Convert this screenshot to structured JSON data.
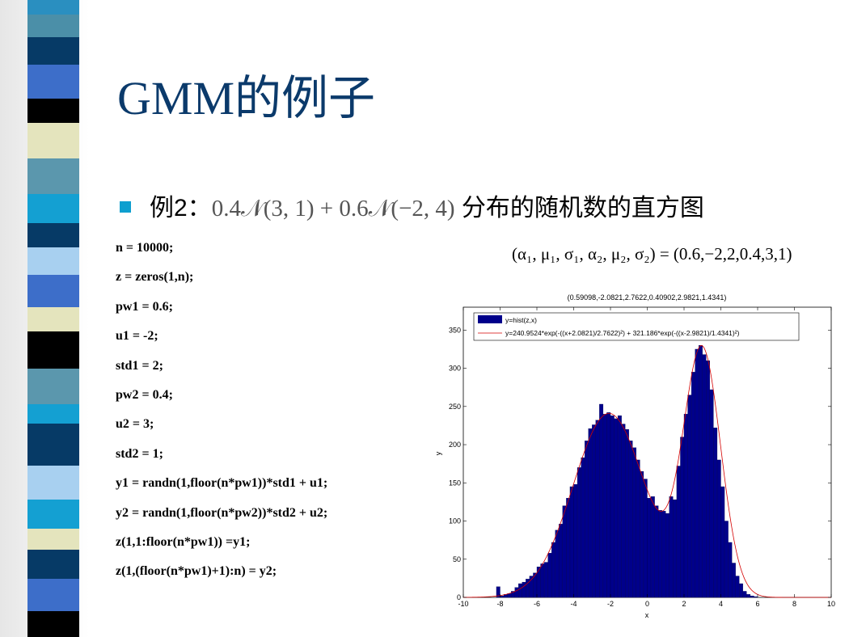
{
  "slide": {
    "title": "GMM的例子",
    "bullet_prefix": "例2：",
    "bullet_formula": "0.4𝒩(3, 1) + 0.6𝒩(−2, 4)",
    "bullet_suffix": " 分布的随机数的直方图",
    "params_text": "(α₁, μ₁, σ₁, α₂, μ₂, σ₂) = (0.6,−2,2,0.4,3,1)",
    "code_lines": [
      "n = 10000;",
      "z = zeros(1,n);",
      "pw1 = 0.6;",
      "u1 = -2;",
      "std1 = 2;",
      "pw2 = 0.4;",
      "u2 = 3;",
      "std2 = 1;",
      "y1 = randn(1,floor(n*pw1))*std1 + u1;",
      "y2 = randn(1,floor(n*pw2))*std2 + u2;",
      "z(1,1:floor(n*pw1)) =y1;",
      "z(1,(floor(n*pw1)+1):n) = y2;"
    ]
  },
  "colors": {
    "title": "#0b3a6b",
    "bullet": "#0e9fcf",
    "bars": "#00008b",
    "fit_line": "#d40000"
  },
  "chart_data": {
    "type": "bar",
    "title": "(0.59098,-2.0821,2.7622,0.40902,2.9821,1.4341)",
    "xlabel": "x",
    "ylabel": "y",
    "xlim": [
      -10,
      10
    ],
    "ylim": [
      0,
      380
    ],
    "xticks": [
      -10,
      -8,
      -6,
      -4,
      -2,
      0,
      2,
      4,
      6,
      8,
      10
    ],
    "yticks": [
      0,
      50,
      100,
      150,
      200,
      250,
      300,
      350
    ],
    "grid": false,
    "legend_position": "top-right",
    "legend": [
      "y=hist(z,x)",
      "y=240.9524*exp(-((x+2.0821)/2.7622)²) + 321.186*exp(-((x-2.9821)/1.4341)²)"
    ],
    "bin_width": 0.2,
    "bin_centers_start": -9.9,
    "counts": [
      0,
      0,
      0,
      0,
      0,
      0,
      0,
      0,
      0,
      14,
      2,
      4,
      5,
      8,
      13,
      18,
      20,
      24,
      28,
      32,
      40,
      44,
      46,
      58,
      72,
      88,
      96,
      120,
      130,
      145,
      148,
      170,
      183,
      205,
      221,
      226,
      232,
      253,
      240,
      242,
      238,
      234,
      238,
      227,
      220,
      205,
      196,
      180,
      165,
      155,
      130,
      132,
      120,
      114,
      113,
      110,
      132,
      128,
      172,
      210,
      240,
      265,
      295,
      325,
      330,
      318,
      310,
      272,
      222,
      180,
      145,
      100,
      72,
      45,
      28,
      18,
      8,
      4,
      2,
      1,
      0,
      0,
      0,
      0,
      0,
      0,
      0,
      0,
      0,
      0,
      0,
      0,
      0,
      0,
      0,
      0,
      0,
      0,
      0,
      0
    ],
    "fit": {
      "type": "line",
      "formula": "y=240.9524*exp(-((x+2.0821)/2.7622)^2) + 321.186*exp(-((x-2.9821)/1.4341)^2)",
      "a1": 240.9524,
      "b1": -2.0821,
      "c1": 2.7622,
      "a2": 321.186,
      "b2": 2.9821,
      "c2": 1.4341
    }
  }
}
